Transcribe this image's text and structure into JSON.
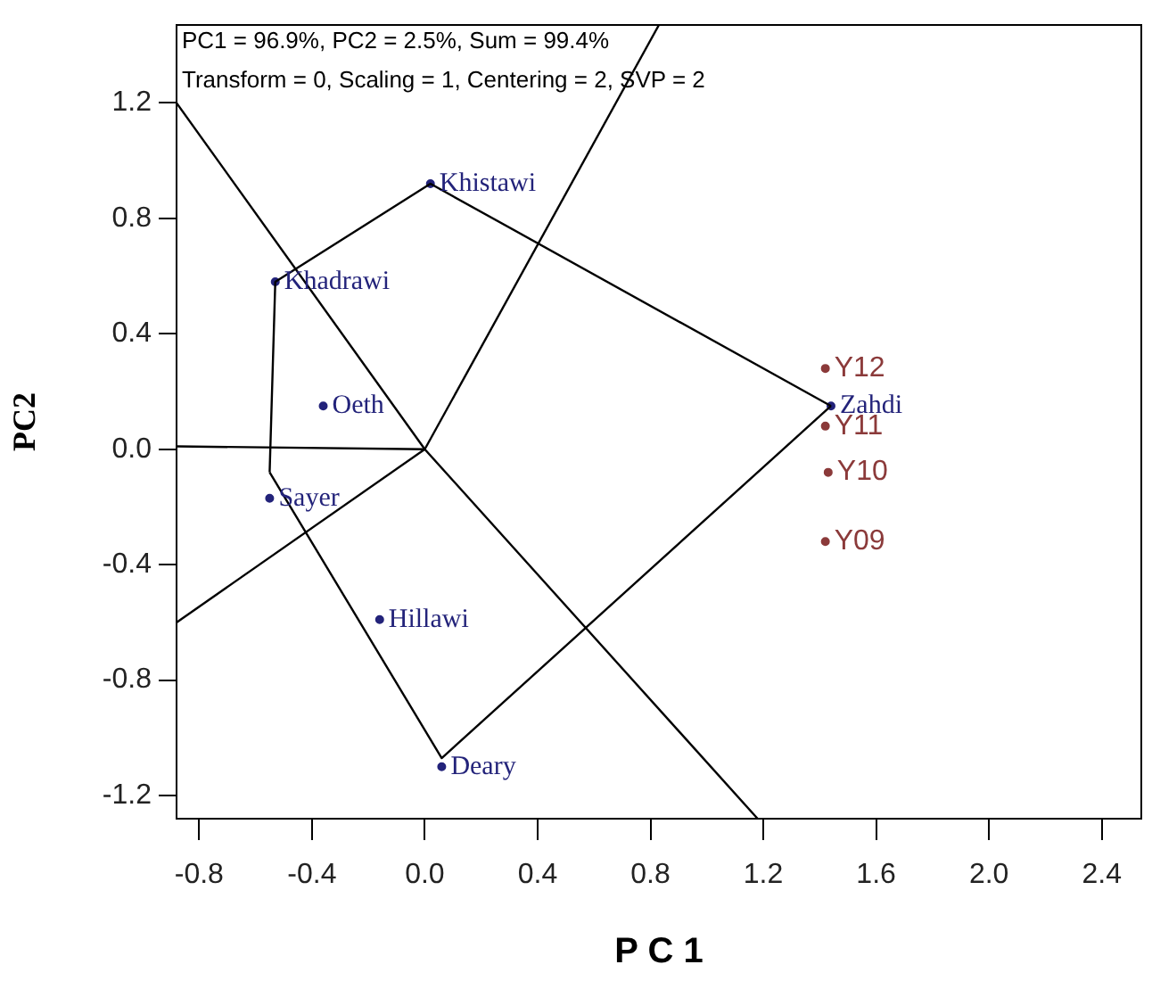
{
  "chart_data": {
    "type": "scatter",
    "xlabel": "P C 1",
    "ylabel": "PC2",
    "marker": "circle",
    "xlim": [
      -0.88,
      2.54
    ],
    "ylim": [
      -1.28,
      1.47
    ],
    "xticks": [
      -0.8,
      -0.4,
      {
        "value": 0,
        "label": "0.0"
      },
      0.4,
      0.8,
      1.2,
      1.6,
      {
        "value": 2,
        "label": "2.0"
      },
      2.4
    ],
    "yticks": [
      -1.2,
      -0.8,
      -0.4,
      {
        "value": 0,
        "label": "0.0"
      },
      0.4,
      0.8,
      1.2
    ],
    "annotations": [
      "PC1 = 96.9%, PC2 = 2.5%, Sum = 99.4%",
      "Transform = 0, Scaling = 1, Centering = 2, SVP = 2"
    ],
    "series": [
      {
        "type": "line",
        "marker": "none",
        "color": "#000000",
        "x": [
          -0.55,
          -0.53,
          0.02,
          1.44
        ],
        "values": [
          -0.08,
          0.58,
          0.92,
          0.15
        ]
      },
      {
        "type": "line",
        "marker": "none",
        "color": "#000000",
        "x": [
          -0.55,
          0.06,
          1.44
        ],
        "values": [
          -0.08,
          -1.07,
          0.15
        ]
      },
      {
        "type": "line",
        "marker": "none",
        "color": "#000000",
        "x": [
          -0.88,
          0,
          1.18
        ],
        "values": [
          1.2,
          0,
          -1.28
        ]
      },
      {
        "type": "line",
        "marker": "none",
        "color": "#000000",
        "x": [
          0,
          0.83
        ],
        "values": [
          0,
          1.47
        ]
      },
      {
        "type": "line",
        "marker": "none",
        "color": "#000000",
        "x": [
          -0.88,
          0
        ],
        "values": [
          0.01,
          0
        ]
      },
      {
        "type": "line",
        "marker": "none",
        "color": "#000000",
        "x": [
          -0.88,
          0
        ],
        "values": [
          -0.6,
          0
        ]
      },
      {
        "type": "scatter",
        "name": "Khistawi",
        "color": "#23237a",
        "x": [
          0.02
        ],
        "values": [
          0.92
        ]
      },
      {
        "type": "scatter",
        "name": "Khadrawi",
        "color": "#23237a",
        "x": [
          -0.53
        ],
        "values": [
          0.58
        ]
      },
      {
        "type": "scatter",
        "name": "Oeth",
        "color": "#23237a",
        "x": [
          -0.36
        ],
        "values": [
          0.15
        ]
      },
      {
        "type": "scatter",
        "name": "Sayer",
        "color": "#23237a",
        "x": [
          -0.55
        ],
        "values": [
          -0.17
        ]
      },
      {
        "type": "scatter",
        "name": "Hillawi",
        "color": "#23237a",
        "x": [
          -0.16
        ],
        "values": [
          -0.59
        ]
      },
      {
        "type": "scatter",
        "name": "Deary",
        "color": "#23237a",
        "x": [
          0.06
        ],
        "values": [
          -1.1
        ]
      },
      {
        "type": "scatter",
        "name": "Zahdi",
        "color": "#23237a",
        "x": [
          1.44
        ],
        "values": [
          0.15
        ]
      },
      {
        "type": "scatter",
        "name": "Y12",
        "color": "#8b3a3a",
        "x": [
          1.42
        ],
        "values": [
          0.28
        ]
      },
      {
        "type": "scatter",
        "name": "Y11",
        "color": "#8b3a3a",
        "x": [
          1.42
        ],
        "values": [
          0.08
        ]
      },
      {
        "type": "scatter",
        "name": "Y10",
        "color": "#8b3a3a",
        "x": [
          1.43
        ],
        "values": [
          -0.08
        ]
      },
      {
        "type": "scatter",
        "name": "Y09",
        "color": "#8b3a3a",
        "x": [
          1.42
        ],
        "values": [
          -0.32
        ]
      }
    ]
  }
}
